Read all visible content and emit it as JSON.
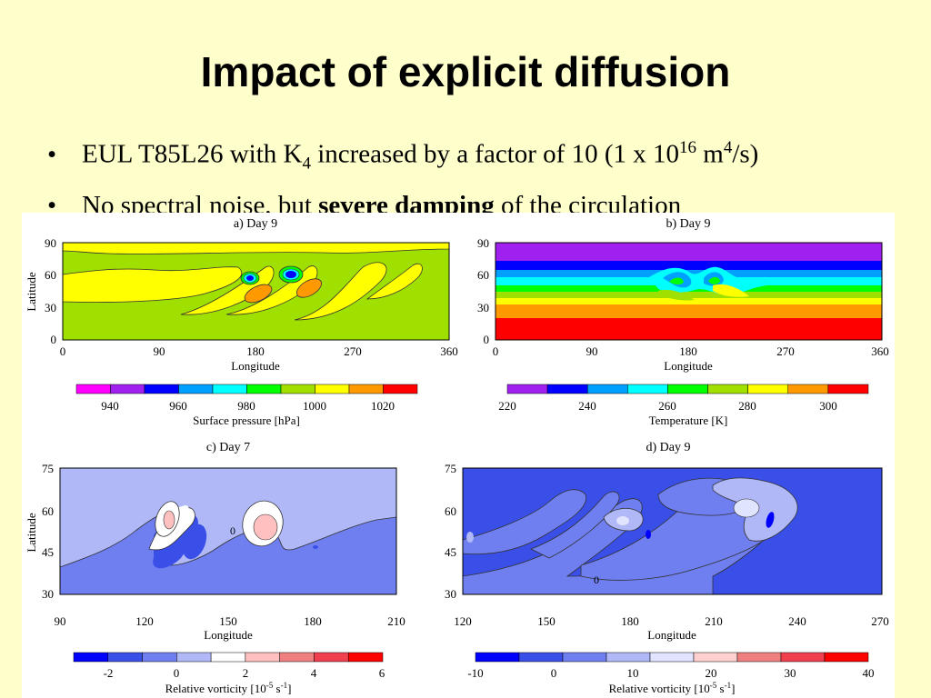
{
  "title": "Impact of explicit diffusion",
  "bullets": {
    "b1": {
      "pre": "EUL T85L26 with K",
      "sub": "4",
      "mid": " increased by a factor of 10 (1 x 10",
      "sup1": "16",
      "post1": " m",
      "sup2": "4",
      "post2": "/s)"
    },
    "b2": {
      "pre": "No spectral noise, but ",
      "bold": "severe damping",
      "post": " of the circulation"
    }
  },
  "panels": {
    "a": {
      "title": "a) Day 9",
      "ylabel": "Latitude",
      "xlabel": "Longitude",
      "yticks": [
        "90",
        "60",
        "30",
        "0"
      ],
      "xticks": [
        "0",
        "90",
        "180",
        "270",
        "360"
      ],
      "colorbar": {
        "label": "Surface pressure [hPa]",
        "ticks": [
          "940",
          "960",
          "980",
          "1000",
          "1020"
        ],
        "colors": [
          "#ff00ff",
          "#a020f0",
          "#0000ff",
          "#00a0ff",
          "#00ffff",
          "#00ff00",
          "#a0e000",
          "#ffff00",
          "#ff9900",
          "#ff0000"
        ]
      }
    },
    "b": {
      "title": "b) Day 9",
      "xlabel": "Longitude",
      "yticks": [
        "90",
        "60",
        "30",
        "0"
      ],
      "xticks": [
        "0",
        "90",
        "180",
        "270",
        "360"
      ],
      "colorbar": {
        "label": "Temperature [K]",
        "ticks": [
          "220",
          "240",
          "260",
          "280",
          "300"
        ],
        "colors": [
          "#a020f0",
          "#0000ff",
          "#00a0ff",
          "#00ffff",
          "#00ff00",
          "#a0e000",
          "#ffff00",
          "#ff9900",
          "#ff0000"
        ]
      }
    },
    "c": {
      "title": "c) Day 7",
      "ylabel": "Latitude",
      "xlabel": "Longitude",
      "yticks": [
        "75",
        "60",
        "45",
        "30"
      ],
      "xticks": [
        "90",
        "120",
        "150",
        "180",
        "210"
      ],
      "contour_label": "0",
      "colorbar": {
        "label_pre": "Relative vorticity [10",
        "label_sup1": "-5",
        "label_mid": " s",
        "label_sup2": "-1",
        "label_post": "]",
        "ticks": [
          "-2",
          "0",
          "2",
          "4",
          "6"
        ],
        "colors": [
          "#0000ff",
          "#3a4ee8",
          "#6f7ff0",
          "#b0b8f8",
          "#ffffff",
          "#ffc0c0",
          "#f08080",
          "#f04050",
          "#ff0000"
        ]
      }
    },
    "d": {
      "title": "d) Day 9",
      "xlabel": "Longitude",
      "yticks": [
        "75",
        "60",
        "45",
        "30"
      ],
      "xticks": [
        "120",
        "150",
        "180",
        "210",
        "240",
        "270"
      ],
      "contour_label": "0",
      "colorbar": {
        "label_pre": "Relative vorticity [10",
        "label_sup1": "-5",
        "label_mid": " s",
        "label_sup2": "-1",
        "label_post": "]",
        "ticks": [
          "-10",
          "0",
          "10",
          "20",
          "30",
          "40"
        ],
        "colors": [
          "#0000ff",
          "#3a4ee8",
          "#6f7ff0",
          "#b0b8f8",
          "#e0e4ff",
          "#ffd0d0",
          "#f08080",
          "#f04050",
          "#ff0000"
        ]
      }
    }
  }
}
